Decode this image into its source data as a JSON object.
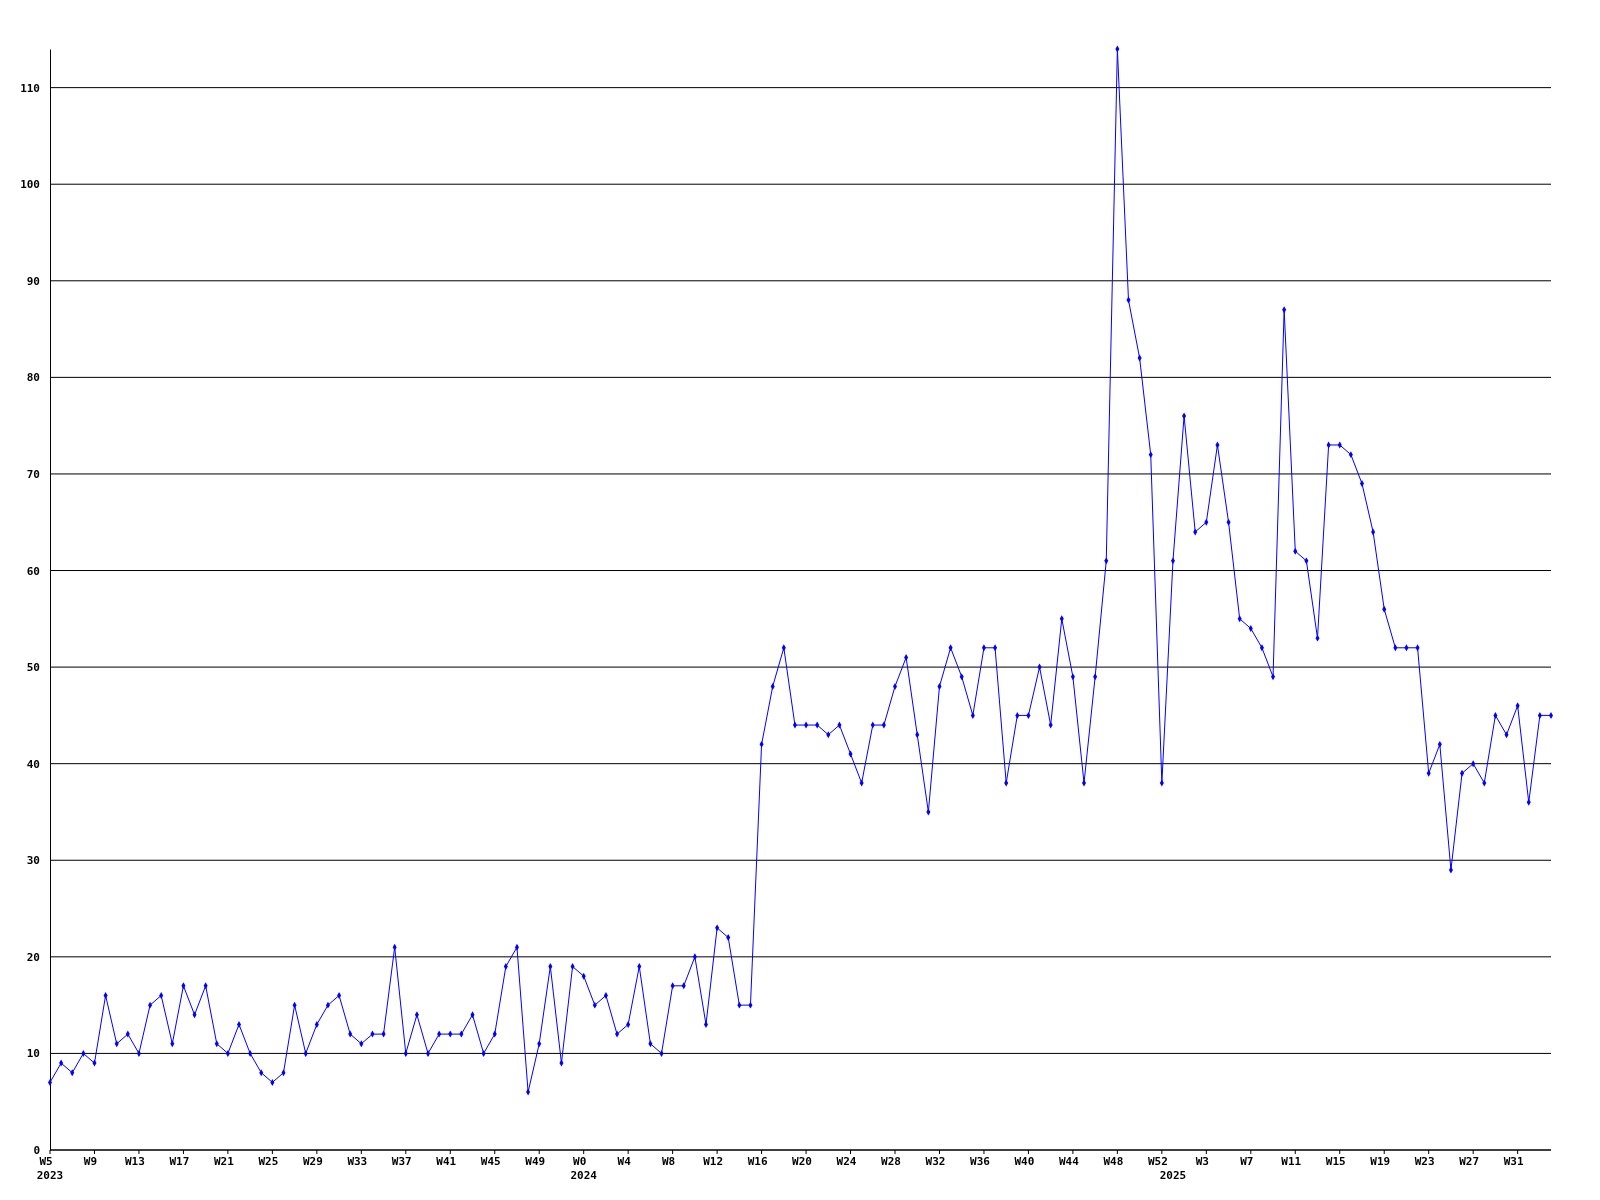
{
  "chart_data": {
    "type": "line",
    "categories": [
      "W5\n2023",
      null,
      null,
      null,
      "W9",
      null,
      null,
      null,
      "W13",
      null,
      null,
      null,
      "W17",
      null,
      null,
      null,
      "W21",
      null,
      null,
      null,
      "W25",
      null,
      null,
      null,
      "W29",
      null,
      null,
      null,
      "W33",
      null,
      null,
      null,
      "W37",
      null,
      null,
      null,
      "W41",
      null,
      null,
      null,
      "W45",
      null,
      null,
      null,
      "W49",
      null,
      null,
      null,
      "W0\n2024",
      null,
      null,
      null,
      "W4",
      null,
      null,
      null,
      "W8",
      null,
      null,
      null,
      "W12",
      null,
      null,
      null,
      "W16",
      null,
      null,
      null,
      "W20",
      null,
      null,
      null,
      "W24",
      null,
      null,
      null,
      "W28",
      null,
      null,
      null,
      "W32",
      null,
      null,
      null,
      "W36",
      null,
      null,
      null,
      "W40",
      null,
      null,
      null,
      "W44",
      null,
      null,
      null,
      "W48",
      null,
      null,
      null,
      "W52",
      "\n2025",
      null,
      null,
      "W3",
      null,
      null,
      null,
      "W7",
      null,
      null,
      null,
      "W11",
      null,
      null,
      null,
      "W15",
      null,
      null,
      null,
      "W19",
      null,
      null,
      null,
      "W23",
      null,
      null,
      null,
      "W27",
      null,
      null,
      null,
      "W31",
      null,
      null,
      null
    ],
    "series": [
      {
        "color": "#0000ff",
        "values": [
          7,
          9,
          8,
          10,
          9,
          16,
          11,
          12,
          10,
          15,
          16,
          11,
          17,
          14,
          17,
          11,
          10,
          13,
          10,
          8,
          7,
          8,
          15,
          10,
          13,
          15,
          16,
          12,
          11,
          12,
          12,
          21,
          10,
          14,
          10,
          12,
          12,
          12,
          14,
          10,
          12,
          19,
          21,
          6,
          11,
          19,
          9,
          19,
          18,
          15,
          16,
          12,
          13,
          19,
          11,
          10,
          17,
          17,
          20,
          13,
          23,
          22,
          15,
          15,
          42,
          48,
          52,
          44,
          44,
          44,
          43,
          44,
          41,
          38,
          44,
          44,
          48,
          51,
          43,
          35,
          48,
          52,
          49,
          45,
          52,
          52,
          38,
          45,
          45,
          50,
          44,
          55,
          49,
          38,
          49,
          61,
          114,
          88,
          82,
          72,
          38,
          61,
          76,
          64,
          65,
          73,
          65,
          55,
          54,
          52,
          49,
          87,
          62,
          61,
          53,
          73,
          73,
          72,
          69,
          64,
          56,
          52,
          52,
          52,
          39,
          42,
          29,
          39,
          40,
          38,
          45,
          43,
          46,
          36,
          45,
          45
        ]
      }
    ],
    "ylim": [
      0,
      114
    ],
    "yticks": [
      0,
      10,
      20,
      30,
      40,
      50,
      60,
      70,
      80,
      90,
      100,
      110
    ],
    "grid": "y",
    "marker": "diamond",
    "line_style": "solid"
  }
}
